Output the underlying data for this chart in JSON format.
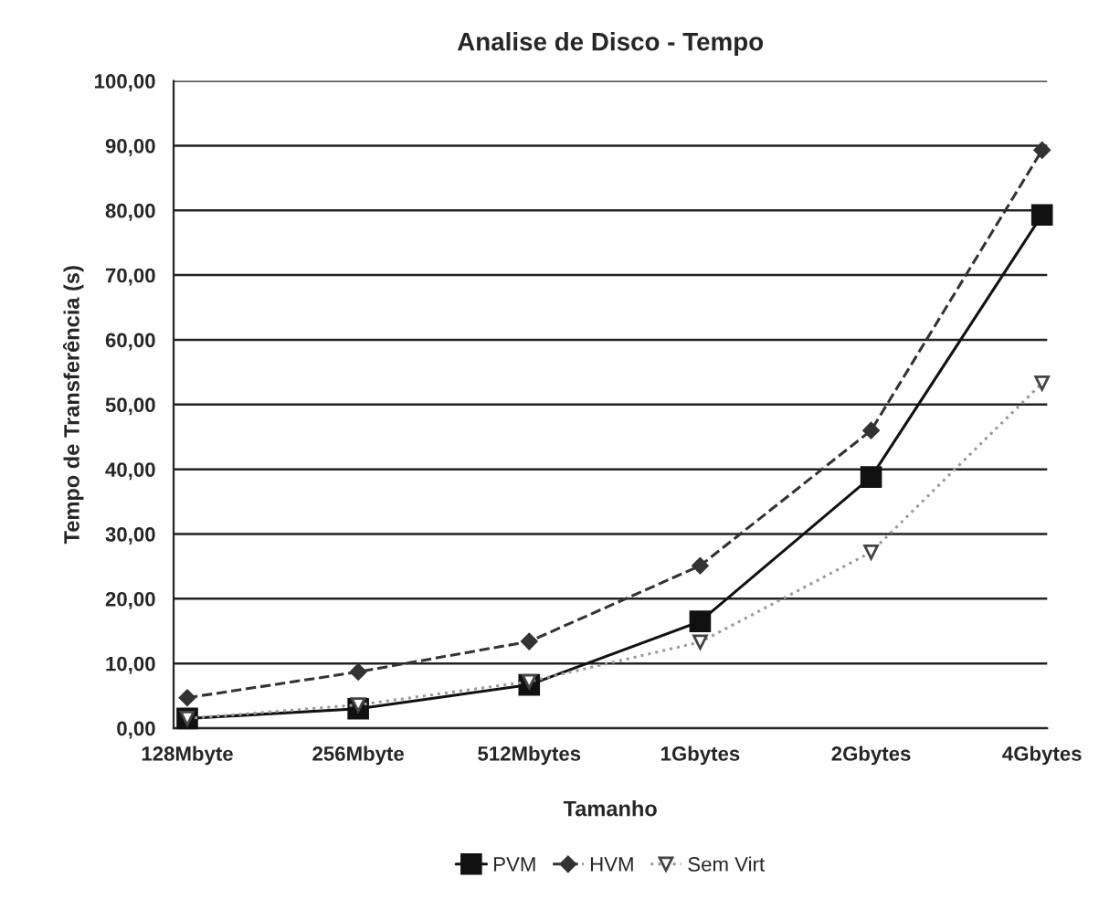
{
  "chart_data": {
    "type": "line",
    "title": "Analise de Disco - Tempo",
    "xlabel": "Tamanho",
    "ylabel": "Tempo de Transferência (s)",
    "categories": [
      "128Mbyte",
      "256Mbyte",
      "512Mbytes",
      "1Gbytes",
      "2Gbytes",
      "4Gbytes"
    ],
    "series": [
      {
        "name": "PVM",
        "color": "#111111",
        "marker": "square",
        "line_style": "solid",
        "values": [
          1.5,
          3.0,
          6.7,
          16.5,
          38.8,
          79.3
        ]
      },
      {
        "name": "HVM",
        "color": "#333333",
        "marker": "diamond",
        "line_style": "dashed",
        "values": [
          4.7,
          8.7,
          13.4,
          25.1,
          46.0,
          89.3
        ]
      },
      {
        "name": "Sem Virt",
        "color": "#999999",
        "marker": "triangle",
        "line_style": "dotted",
        "values": [
          1.5,
          3.6,
          7.2,
          13.3,
          27.2,
          53.3
        ]
      }
    ],
    "ylim": [
      0,
      100
    ],
    "yticks": [
      {
        "value": 0,
        "label": "0,00"
      },
      {
        "value": 10,
        "label": "10,00"
      },
      {
        "value": 20,
        "label": "20,00"
      },
      {
        "value": 30,
        "label": "30,00"
      },
      {
        "value": 40,
        "label": "40,00"
      },
      {
        "value": 50,
        "label": "50,00"
      },
      {
        "value": 60,
        "label": "60,00"
      },
      {
        "value": 70,
        "label": "70,00"
      },
      {
        "value": 80,
        "label": "80,00"
      },
      {
        "value": 90,
        "label": "90,00"
      },
      {
        "value": 100,
        "label": "100,00"
      }
    ],
    "grid": "y",
    "legend": "bottom"
  }
}
